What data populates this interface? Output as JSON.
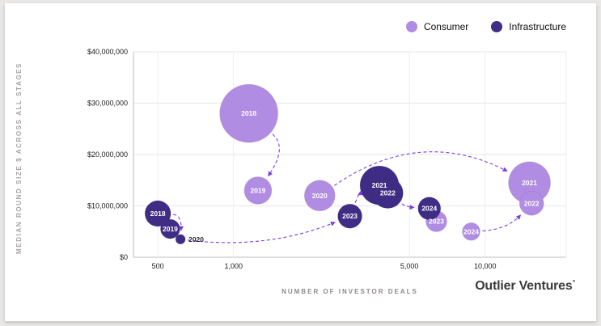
{
  "branding": {
    "name": "Outlier Ventures",
    "mark": "°"
  },
  "chart_data": {
    "type": "scatter",
    "title": "",
    "x_axis": {
      "label": "NUMBER OF INVESTOR DEALS",
      "scale": "log",
      "min": 400,
      "max": 21000,
      "ticks": [
        {
          "value": 500,
          "label": "500"
        },
        {
          "value": 1000,
          "label": "1,000"
        },
        {
          "value": 5000,
          "label": "5,000"
        },
        {
          "value": 10000,
          "label": "10,000"
        }
      ]
    },
    "y_axis": {
      "label": "MEDIAN ROUND SIZE $ ACROSS ALL STAGES",
      "min": 0,
      "max": 40000000,
      "ticks": [
        {
          "value": 0,
          "label": "$0"
        },
        {
          "value": 10000000,
          "label": "$10,000,000"
        },
        {
          "value": 20000000,
          "label": "$20,000,000"
        },
        {
          "value": 30000000,
          "label": "$30,000,000"
        },
        {
          "value": 40000000,
          "label": "$40,000,000"
        }
      ]
    },
    "series": [
      {
        "name": "Consumer",
        "color": "#b18ce3",
        "label_color": "#ffffff",
        "points": [
          {
            "year": "2018",
            "x": 1150,
            "y": 28000000,
            "r": 36
          },
          {
            "year": "2019",
            "x": 1250,
            "y": 13000000,
            "r": 17
          },
          {
            "year": "2020",
            "x": 2200,
            "y": 12000000,
            "r": 19
          },
          {
            "year": "2021",
            "x": 15000,
            "y": 14500000,
            "r": 26
          },
          {
            "year": "2022",
            "x": 15300,
            "y": 10500000,
            "r": 15
          },
          {
            "year": "2023",
            "x": 6400,
            "y": 7000000,
            "r": 13
          },
          {
            "year": "2024",
            "x": 8800,
            "y": 5000000,
            "r": 11
          }
        ]
      },
      {
        "name": "Infrastructure",
        "color": "#3f2d85",
        "label_color": "#ffffff",
        "points": [
          {
            "year": "2018",
            "x": 500,
            "y": 8500000,
            "r": 16
          },
          {
            "year": "2019",
            "x": 560,
            "y": 5500000,
            "r": 12
          },
          {
            "year": "2020",
            "x": 615,
            "y": 3500000,
            "r": 6,
            "label_outside": true
          },
          {
            "year": "2021",
            "x": 3800,
            "y": 14000000,
            "r": 24
          },
          {
            "year": "2022",
            "x": 4100,
            "y": 12500000,
            "r": 19
          },
          {
            "year": "2023",
            "x": 2900,
            "y": 8000000,
            "r": 15
          },
          {
            "year": "2024",
            "x": 6000,
            "y": 9500000,
            "r": 14
          }
        ]
      }
    ],
    "arrows": [
      {
        "from": [
          "Consumer",
          "2018"
        ],
        "to": [
          "Consumer",
          "2019"
        ],
        "bend": -0.45
      },
      {
        "from": [
          "Consumer",
          "2020"
        ],
        "to": [
          "Consumer",
          "2021"
        ],
        "bend": -0.3
      },
      {
        "from": [
          "Infrastructure",
          "2018"
        ],
        "to": [
          "Infrastructure",
          "2020"
        ],
        "bend": -0.5
      },
      {
        "from": [
          "Infrastructure",
          "2020"
        ],
        "to": [
          "Infrastructure",
          "2023"
        ],
        "bend": 0.13
      },
      {
        "from": [
          "Infrastructure",
          "2023"
        ],
        "to": [
          "Infrastructure",
          "2021"
        ],
        "bend": -0.2
      },
      {
        "from": [
          "Infrastructure",
          "2022"
        ],
        "to": [
          "Infrastructure",
          "2024"
        ],
        "bend": 0.15
      },
      {
        "from": [
          "Consumer",
          "2024"
        ],
        "to": [
          "Consumer",
          "2022"
        ],
        "bend": 0.2
      }
    ],
    "arrow_color": "#7d3ce0",
    "grid": {
      "h_color": "#e6e6e6",
      "v_color": "#ededed",
      "axis_color": "#c0bfbf"
    }
  }
}
